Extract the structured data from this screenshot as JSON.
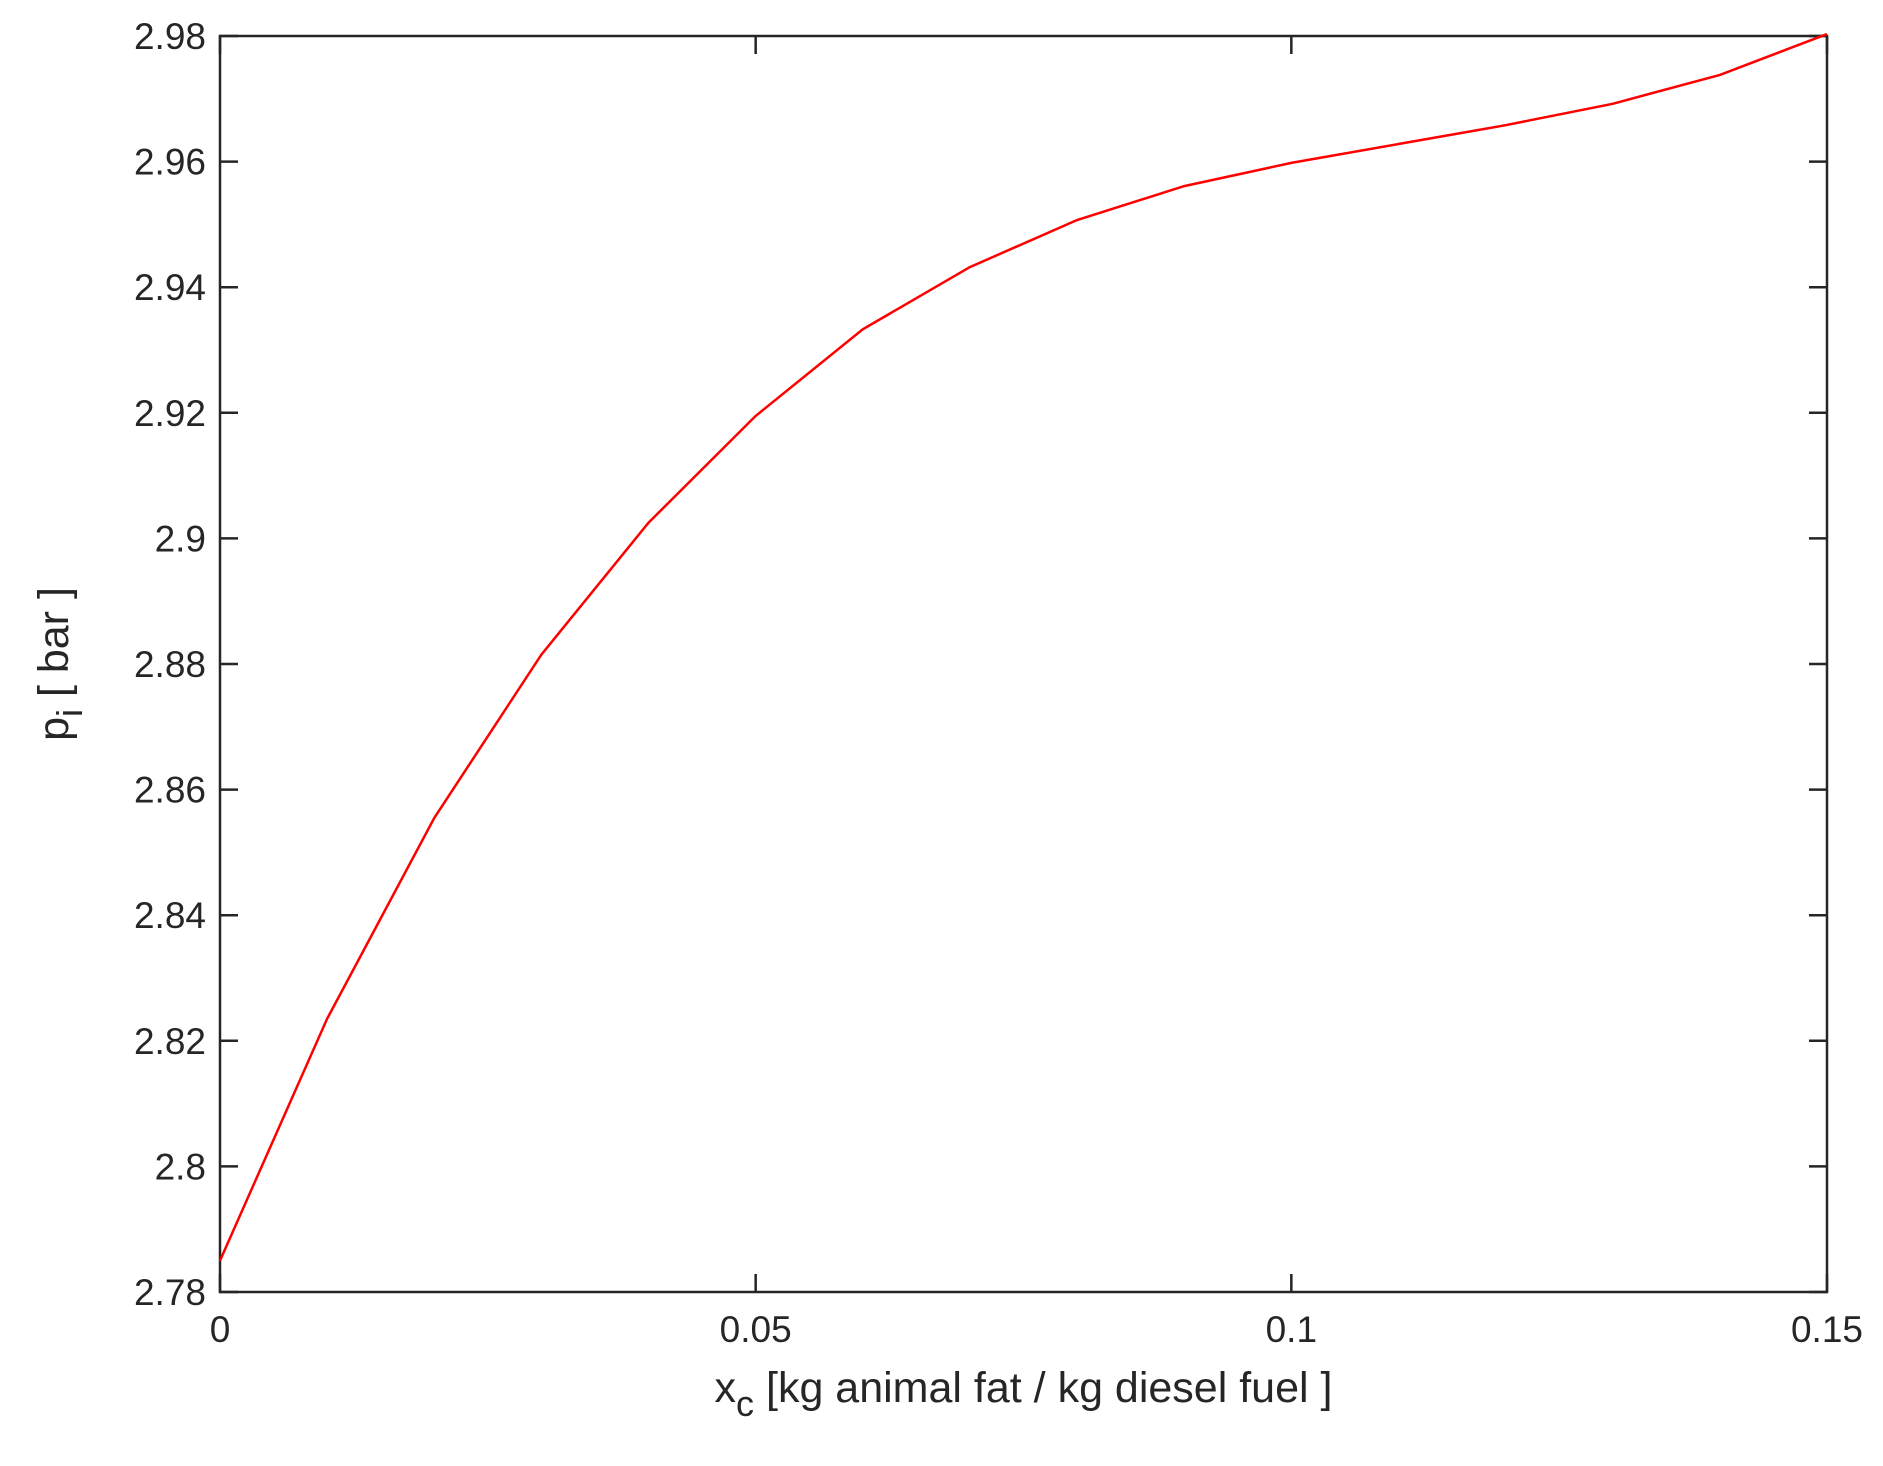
{
  "chart_data": {
    "type": "line",
    "title": "",
    "xlabel_main": "x",
    "xlabel_sub": "c",
    "xlabel_rest": " [kg animal fat / kg diesel fuel ]",
    "ylabel_main": "p",
    "ylabel_sub": "i",
    "ylabel_rest": " [ bar ]",
    "xlim": [
      0,
      0.15
    ],
    "ylim": [
      2.78,
      2.98
    ],
    "x_ticks": [
      0,
      0.05,
      0.1,
      0.15
    ],
    "x_tick_labels": [
      "0",
      "0.05",
      "0.1",
      "0.15"
    ],
    "y_ticks": [
      2.78,
      2.8,
      2.82,
      2.84,
      2.86,
      2.88,
      2.9,
      2.92,
      2.94,
      2.96,
      2.98
    ],
    "y_tick_labels": [
      "2.78",
      "2.8",
      "2.82",
      "2.84",
      "2.86",
      "2.88",
      "2.9",
      "2.92",
      "2.94",
      "2.96",
      "2.98"
    ],
    "grid": false,
    "series": [
      {
        "color": "#ff0000",
        "x": [
          0,
          0.01,
          0.02,
          0.03,
          0.04,
          0.05,
          0.06,
          0.07,
          0.08,
          0.09,
          0.1,
          0.11,
          0.12,
          0.13,
          0.14,
          0.15
        ],
        "y": [
          2.785,
          2.8235,
          2.8555,
          2.8815,
          2.9025,
          2.9195,
          2.9333,
          2.9432,
          2.9507,
          2.9561,
          2.9598,
          2.9628,
          2.9658,
          2.9692,
          2.9738,
          2.9803
        ]
      }
    ]
  }
}
